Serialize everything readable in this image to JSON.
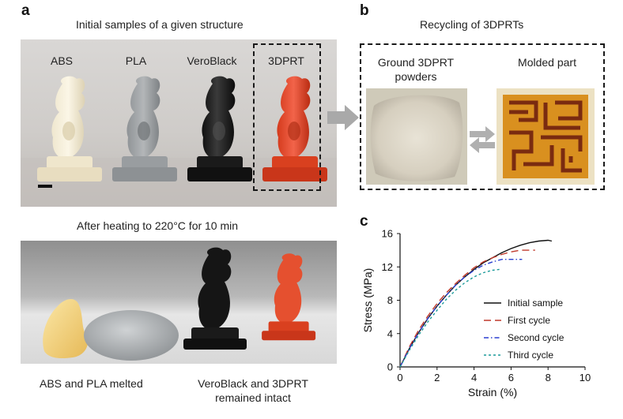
{
  "panel_a": {
    "letter": "a",
    "title_top": "Initial samples of a given structure",
    "samples": [
      "ABS",
      "PLA",
      "VeroBlack",
      "3DPRT"
    ],
    "title_bottom": "After heating to 220°C for 10 min",
    "caption_left": "ABS and PLA melted",
    "caption_right_line1": "VeroBlack and 3DPRT",
    "caption_right_line2": "remained intact"
  },
  "panel_b": {
    "letter": "b",
    "title": "Recycling of 3DPRTs",
    "ground_line1": "Ground 3DPRT",
    "ground_line2": "powders",
    "molded": "Molded part"
  },
  "panel_c": {
    "letter": "c"
  },
  "chart_data": {
    "type": "line",
    "xlabel": "Strain (%)",
    "ylabel": "Stress (MPa)",
    "xlim": [
      0,
      10
    ],
    "ylim": [
      0,
      16
    ],
    "xticks": [
      0,
      2,
      4,
      6,
      8,
      10
    ],
    "yticks": [
      0,
      4,
      8,
      12,
      16
    ],
    "legend_position": "bottom-right",
    "series": [
      {
        "name": "Initial sample",
        "color": "#111111",
        "dash": "solid",
        "x": [
          0,
          0.5,
          1,
          1.5,
          2,
          2.5,
          3,
          3.5,
          4,
          4.5,
          5,
          5.5,
          6,
          6.5,
          7,
          7.5,
          8,
          8.2
        ],
        "y": [
          0,
          2.2,
          4.1,
          5.8,
          7.3,
          8.6,
          9.8,
          10.8,
          11.7,
          12.5,
          13.1,
          13.7,
          14.2,
          14.6,
          14.9,
          15.1,
          15.2,
          15.1
        ]
      },
      {
        "name": "First cycle",
        "color": "#c0392b",
        "dash": "long",
        "x": [
          0,
          0.5,
          1,
          1.5,
          2,
          2.5,
          3,
          3.5,
          4,
          4.5,
          5,
          5.5,
          6,
          6.5,
          7.3
        ],
        "y": [
          0,
          2.4,
          4.4,
          6.1,
          7.6,
          8.9,
          10.0,
          11.0,
          11.9,
          12.6,
          13.1,
          13.5,
          13.8,
          14.0,
          14.0
        ]
      },
      {
        "name": "Second cycle",
        "color": "#2a3fd0",
        "dash": "dashdot",
        "x": [
          0,
          0.5,
          1,
          1.5,
          2,
          2.5,
          3,
          3.5,
          4,
          4.5,
          5,
          5.5,
          6,
          6.6
        ],
        "y": [
          0,
          2.2,
          4.1,
          5.8,
          7.3,
          8.6,
          9.8,
          10.8,
          11.6,
          12.2,
          12.6,
          12.9,
          12.9,
          12.9
        ]
      },
      {
        "name": "Third cycle",
        "color": "#1a9a9a",
        "dash": "short",
        "x": [
          0,
          0.5,
          1,
          1.5,
          2,
          2.5,
          3,
          3.5,
          4,
          4.5,
          5,
          5.4
        ],
        "y": [
          0,
          2.0,
          3.8,
          5.4,
          6.8,
          8.1,
          9.2,
          10.1,
          10.8,
          11.3,
          11.6,
          11.7
        ]
      }
    ]
  }
}
